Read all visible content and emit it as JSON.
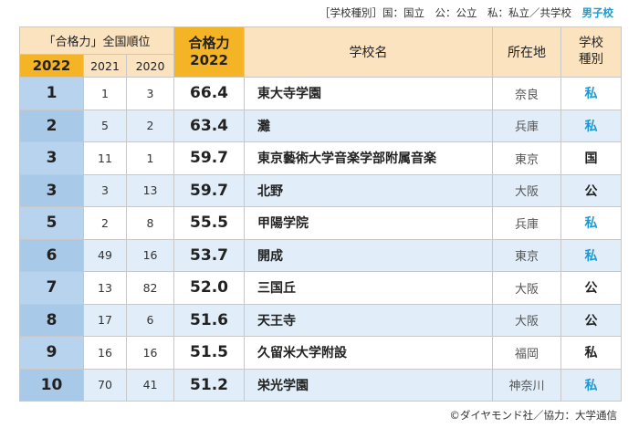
{
  "legend": {
    "prefix": "［学校種別］国：国立　公：公立　私：私立／共学校　",
    "boys_label": "男子校"
  },
  "header": {
    "group_label": "「合格力」全国順位",
    "year_main": "2022",
    "year_2021": "2021",
    "year_2020": "2020",
    "score_label": "合格力",
    "score_year": "2022",
    "school_name": "学校名",
    "location": "所在地",
    "type_line1": "学校",
    "type_line2": "種別"
  },
  "rows": [
    {
      "rank": "1",
      "y2021": "1",
      "y2020": "3",
      "score": "66.4",
      "name": "東大寺学園",
      "location": "奈良",
      "type": "私",
      "boys": true
    },
    {
      "rank": "2",
      "y2021": "5",
      "y2020": "2",
      "score": "63.4",
      "name": "灘",
      "location": "兵庫",
      "type": "私",
      "boys": true
    },
    {
      "rank": "3",
      "y2021": "11",
      "y2020": "1",
      "score": "59.7",
      "name": "東京藝術大学音楽学部附属音楽",
      "location": "東京",
      "type": "国",
      "boys": false
    },
    {
      "rank": "3",
      "y2021": "3",
      "y2020": "13",
      "score": "59.7",
      "name": "北野",
      "location": "大阪",
      "type": "公",
      "boys": false
    },
    {
      "rank": "5",
      "y2021": "2",
      "y2020": "8",
      "score": "55.5",
      "name": "甲陽学院",
      "location": "兵庫",
      "type": "私",
      "boys": true
    },
    {
      "rank": "6",
      "y2021": "49",
      "y2020": "16",
      "score": "53.7",
      "name": "開成",
      "location": "東京",
      "type": "私",
      "boys": true
    },
    {
      "rank": "7",
      "y2021": "13",
      "y2020": "82",
      "score": "52.0",
      "name": "三国丘",
      "location": "大阪",
      "type": "公",
      "boys": false
    },
    {
      "rank": "8",
      "y2021": "17",
      "y2020": "6",
      "score": "51.6",
      "name": "天王寺",
      "location": "大阪",
      "type": "公",
      "boys": false
    },
    {
      "rank": "9",
      "y2021": "16",
      "y2020": "16",
      "score": "51.5",
      "name": "久留米大学附設",
      "location": "福岡",
      "type": "私",
      "boys": false
    },
    {
      "rank": "10",
      "y2021": "70",
      "y2020": "41",
      "score": "51.2",
      "name": "栄光学園",
      "location": "神奈川",
      "type": "私",
      "boys": true
    }
  ],
  "footer": "©ダイヤモンド社／協力：大学通信",
  "colors": {
    "header_orange": "#f5b426",
    "header_cream": "#fbe3c0",
    "row_blue": "#e1edf8",
    "rank_blue": "#b7d3ee",
    "boys_school_blue": "#1a9ad6"
  }
}
